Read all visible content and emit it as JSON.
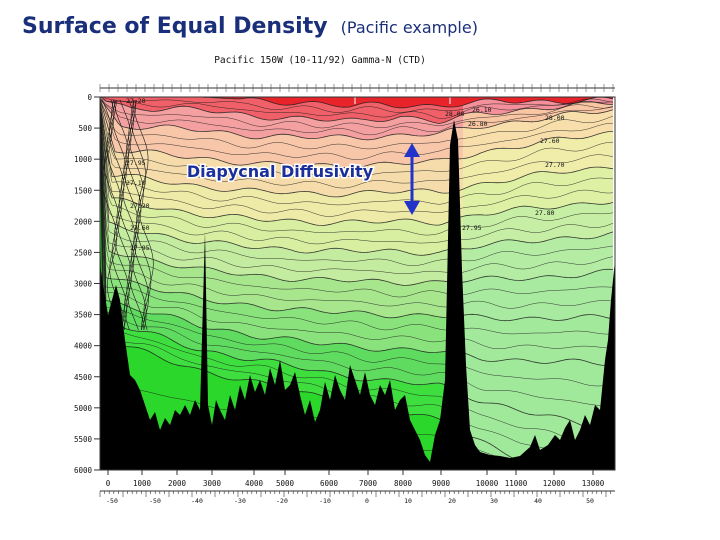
{
  "title": {
    "main": "Surface of Equal Density",
    "sub": "(Pacific example)"
  },
  "figure": {
    "header": "Pacific 150W (10-11/92) Gamma-N (CTD)",
    "depth_ticks": [
      "0",
      "500",
      "1000",
      "1500",
      "2000",
      "2500",
      "3000",
      "3500",
      "4000",
      "4500",
      "5000",
      "5500",
      "6000"
    ],
    "distance_ticks": [
      "0",
      "1000",
      "2000",
      "3000",
      "4000",
      "5000",
      "6000",
      "7000",
      "8000",
      "9000",
      "10000",
      "11000",
      "12000",
      "13000"
    ],
    "latitude_ticks": [
      "-50",
      "-50",
      "-40",
      "-30",
      "-20",
      "-10",
      "0",
      "10",
      "20",
      "30",
      "40",
      "50"
    ],
    "contour_labels": [
      "27.20",
      "27.95",
      "27.10",
      "27.70",
      "27.60",
      "27.80",
      "27.95",
      "28.00",
      "26.80",
      "26.10",
      "27.20",
      "27.60",
      "27.95",
      "28.00"
    ],
    "annotation": {
      "label": "Diapycnal Diffusivity"
    }
  },
  "colors": {
    "title": "#1a2f7a",
    "arrow": "#2233cc",
    "annotation_text": "#1a2f9a",
    "bands": [
      "#e8232a",
      "#f06068",
      "#f5a0a0",
      "#f8c6a8",
      "#f5dcaa",
      "#eeeaa8",
      "#d8eea0",
      "#c4eca0",
      "#a8e68e",
      "#8ae27c",
      "#5fdc5f",
      "#3ede3e",
      "#2ad72a"
    ],
    "east_bands": [
      "#e8232a",
      "#f3909a",
      "#f9c6a4",
      "#f7deaa",
      "#f0ecaa",
      "#ddf0a4",
      "#c6eea4",
      "#b4eca4",
      "#a8eaa0",
      "#a2e99c",
      "#a0e89a"
    ],
    "bathymetry": "#000000"
  }
}
